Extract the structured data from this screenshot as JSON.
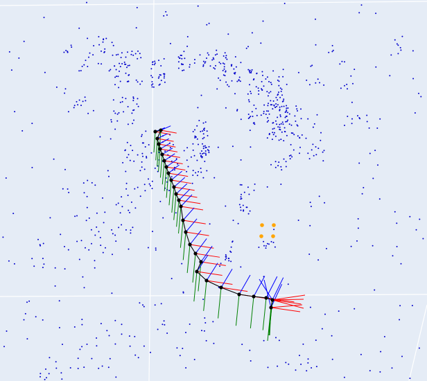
{
  "scene": {
    "type": "3d-trajectory-point-cloud",
    "background_color": "#e5ecf6",
    "grid_color": "#ffffff",
    "point_cloud_color": "#0000cc",
    "trajectory_color": "#000000",
    "axis_x_color": "#ff0000",
    "axis_y_color": "#008000",
    "axis_z_color": "#0000ff",
    "marker_color": "#ffa500",
    "camera_pose_count": 33,
    "highlight_marker_count": 4
  }
}
